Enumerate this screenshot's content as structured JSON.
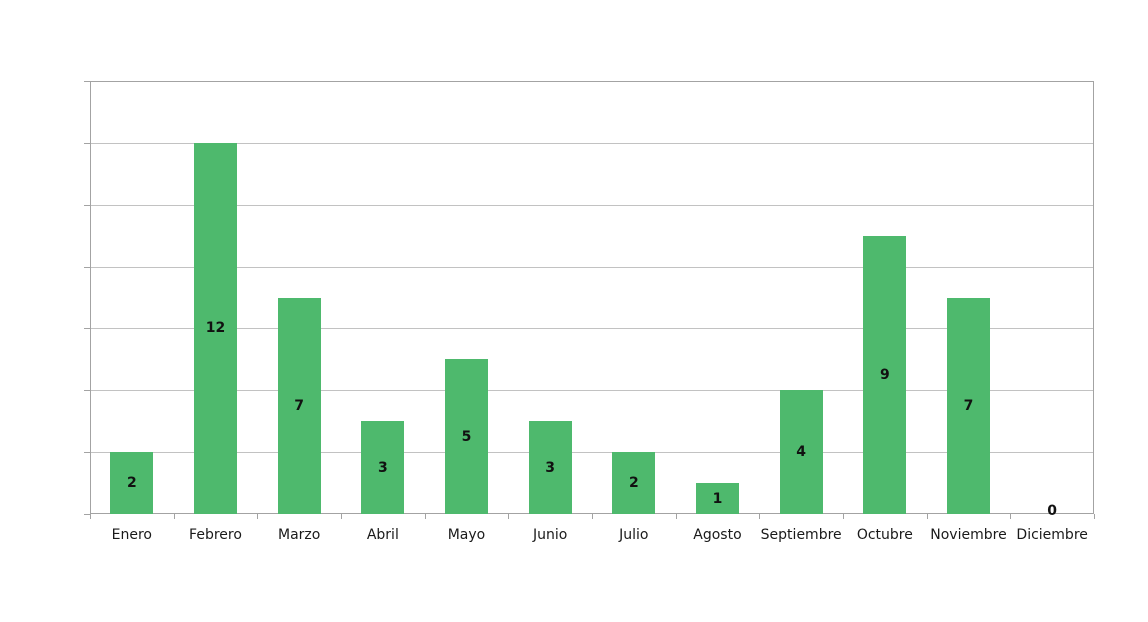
{
  "chart_data": {
    "type": "bar",
    "title": "",
    "xlabel": "",
    "ylabel": "",
    "categories": [
      "Enero",
      "Febrero",
      "Marzo",
      "Abril",
      "Mayo",
      "Junio",
      "Julio",
      "Agosto",
      "Septiembre",
      "Octubre",
      "Noviembre",
      "Diciembre"
    ],
    "values": [
      2,
      12,
      7,
      3,
      5,
      3,
      2,
      1,
      4,
      9,
      7,
      0
    ],
    "data_labels": [
      "2",
      "12",
      "7",
      "3",
      "5",
      "3",
      "2",
      "1",
      "4",
      "9",
      "7",
      "0"
    ],
    "ylim": [
      0,
      14
    ],
    "gridline_step": 2,
    "grid": true,
    "legend_position": "none",
    "y_axis_labels_visible": false,
    "data_labels_position": "center",
    "colors": {
      "bar": "#4EB96D",
      "gridline": "#c2c2c2",
      "plot_border": "#a3a3a3",
      "tick": "#a3a3a3",
      "category_label_text": "#1a1a1a",
      "data_label_text": "#111111",
      "background": "#ffffff"
    }
  }
}
